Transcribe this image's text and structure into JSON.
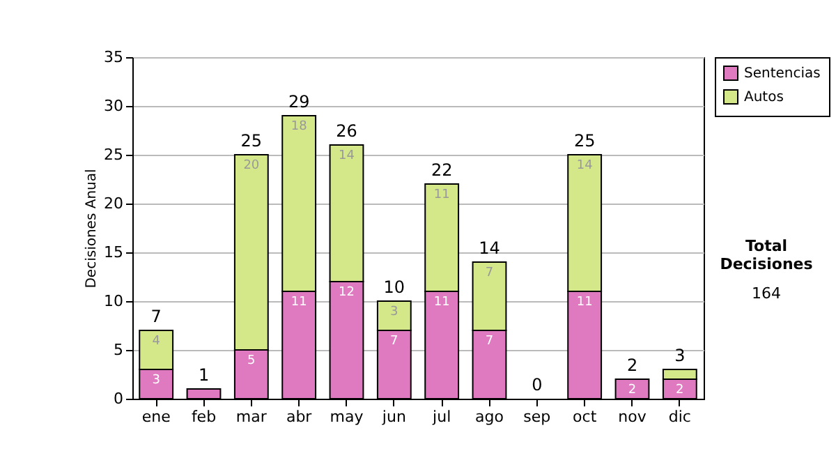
{
  "chart_data": {
    "type": "bar",
    "stacked": true,
    "ylabel": "Decisiones Anual",
    "categories": [
      "ene",
      "feb",
      "mar",
      "abr",
      "may",
      "jun",
      "jul",
      "ago",
      "sep",
      "oct",
      "nov",
      "dic"
    ],
    "series": [
      {
        "name": "Sentencias",
        "color": "#e07ac0",
        "values": [
          3,
          1,
          5,
          11,
          12,
          7,
          11,
          7,
          0,
          11,
          2,
          2
        ],
        "value_labels": [
          "3",
          null,
          "5",
          "11",
          "12",
          "7",
          "11",
          "7",
          null,
          "11",
          "2",
          "2"
        ]
      },
      {
        "name": "Autos",
        "color": "#d4e88a",
        "values": [
          4,
          0,
          20,
          18,
          14,
          3,
          11,
          7,
          0,
          14,
          0,
          1
        ],
        "value_labels": [
          "4",
          null,
          "20",
          "18",
          "14",
          "3",
          "11",
          "7",
          null,
          "14",
          null,
          null
        ]
      }
    ],
    "totals": [
      "7",
      "1",
      "25",
      "29",
      "26",
      "10",
      "22",
      "14",
      "0",
      "25",
      "2",
      "3"
    ],
    "ylim": [
      0,
      35
    ],
    "yticks": [
      0,
      5,
      10,
      15,
      20,
      25,
      30,
      35
    ],
    "grid": "y",
    "legend": "right",
    "annotations": [
      "Total Decisiones",
      "164"
    ]
  }
}
